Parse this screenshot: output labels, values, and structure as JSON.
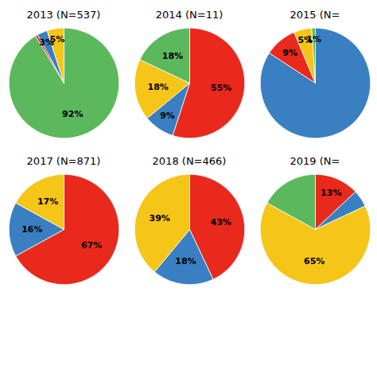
{
  "chart_data": [
    {
      "type": "pie",
      "title": "2013 (N=537)",
      "values": [
        92,
        0.7,
        3,
        5
      ],
      "value_labels": [
        "92%",
        null,
        "3%",
        "5%"
      ],
      "colors": [
        "#5cb85c",
        "#e8291c",
        "#3a7fc1",
        "#f5c518"
      ],
      "data_labels": true
    },
    {
      "type": "pie",
      "title": "2014 (N=11)",
      "values": [
        55,
        9,
        18,
        18
      ],
      "value_labels": [
        "55%",
        "9%",
        "18%",
        "18%"
      ],
      "colors": [
        "#e8291c",
        "#3a7fc1",
        "#f5c518",
        "#5cb85c"
      ],
      "data_labels": true
    },
    {
      "type": "pie",
      "title": "2015 (N=",
      "values": [
        80,
        9,
        5,
        1
      ],
      "value_labels": [
        null,
        "9%",
        "5%",
        "1%"
      ],
      "colors": [
        "#3a7fc1",
        "#e8291c",
        "#f5c518",
        "#5cb85c"
      ],
      "data_labels": true
    },
    {
      "type": "pie",
      "title": "2017 (N=871)",
      "values": [
        67,
        16,
        17,
        0
      ],
      "value_labels": [
        "67%",
        "16%",
        "17%",
        null
      ],
      "colors": [
        "#e8291c",
        "#3a7fc1",
        "#f5c518",
        "#5cb85c"
      ],
      "data_labels": true
    },
    {
      "type": "pie",
      "title": "2018 (N=466)",
      "values": [
        43,
        18,
        39,
        0
      ],
      "value_labels": [
        "43%",
        "18%",
        "39%",
        null
      ],
      "colors": [
        "#e8291c",
        "#3a7fc1",
        "#f5c518",
        "#5cb85c"
      ],
      "data_labels": true
    },
    {
      "type": "pie",
      "title": "2019 (N=",
      "values": [
        13,
        5,
        65,
        17
      ],
      "value_labels": [
        "13%",
        null,
        "65%",
        null
      ],
      "colors": [
        "#e8291c",
        "#3a7fc1",
        "#f5c518",
        "#5cb85c"
      ],
      "data_labels": true
    }
  ]
}
